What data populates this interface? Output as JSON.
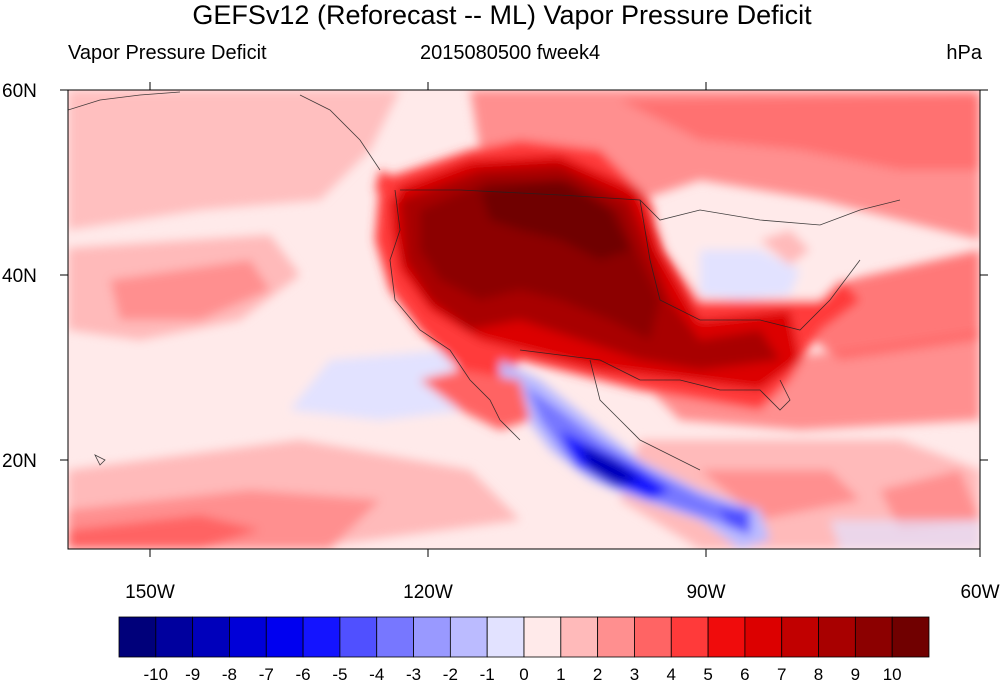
{
  "title": "GEFSv12 (Reforecast -- ML) Vapor Pressure Deficit",
  "left_subtitle": "Vapor Pressure Deficit",
  "center_subtitle": "2015080500 fweek4",
  "units": "hPa",
  "lat_labels": [
    "60N",
    "40N",
    "20N"
  ],
  "lon_labels": [
    "150W",
    "120W",
    "90W",
    "60W"
  ],
  "colorbar": {
    "labels": [
      "-10",
      "-9",
      "-8",
      "-7",
      "-6",
      "-5",
      "-4",
      "-3",
      "-2",
      "-1",
      "0",
      "1",
      "2",
      "3",
      "4",
      "5",
      "6",
      "7",
      "8",
      "9",
      "10"
    ],
    "colors": [
      "#00007a",
      "#00009e",
      "#0000bb",
      "#0000d8",
      "#0000f0",
      "#1414ff",
      "#5050ff",
      "#7777ff",
      "#9999ff",
      "#bbbbff",
      "#e2e2ff",
      "#ffeaea",
      "#ffbaba",
      "#ff8f8f",
      "#ff6464",
      "#ff3a3a",
      "#f00c0c",
      "#dc0000",
      "#c10000",
      "#a80000",
      "#8c0000",
      "#700000"
    ]
  }
}
